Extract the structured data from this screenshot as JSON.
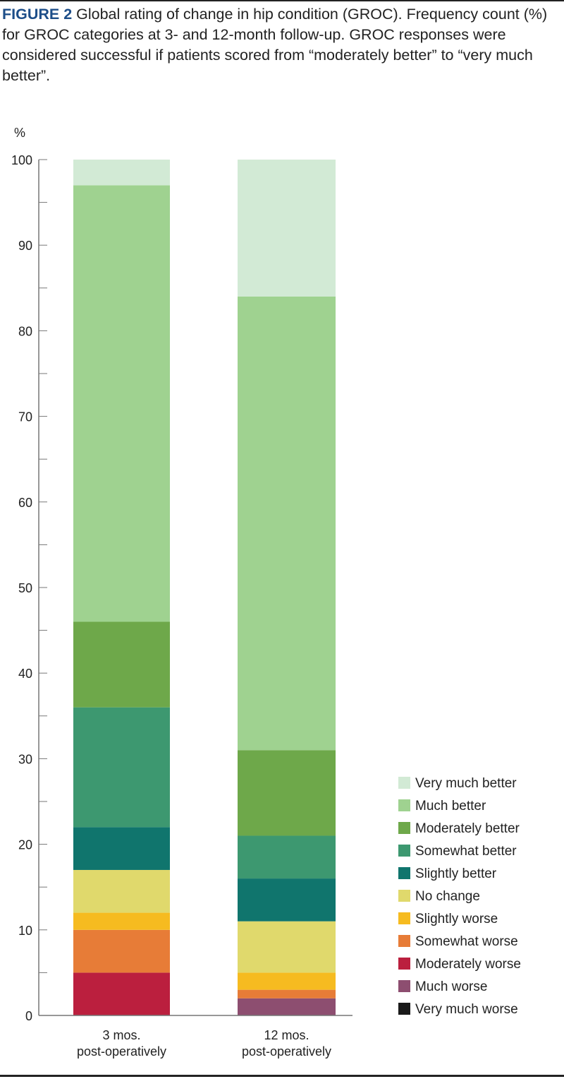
{
  "caption": {
    "figure_label": "FIGURE 2",
    "text": "Global rating of change in hip condition (GROC). Frequency count (%) for GROC categories at 3- and 12-month follow-up. GROC responses were considered successful if patients scored from “moderately better” to “very much better”."
  },
  "chart_data": {
    "type": "bar",
    "stacked": true,
    "ylabel": "%",
    "ylim": [
      0,
      100
    ],
    "yticks": [
      0,
      10,
      20,
      30,
      40,
      50,
      60,
      70,
      80,
      90,
      100
    ],
    "categories": [
      [
        "3 mos.",
        "post-operatively"
      ],
      [
        "12 mos.",
        "post-operatively"
      ]
    ],
    "legend_position": "bottom-right",
    "series": [
      {
        "name": "Very much worse",
        "color": "#1a1a1a",
        "values": [
          0,
          0
        ]
      },
      {
        "name": "Much worse",
        "color": "#8d4e70",
        "values": [
          0,
          2
        ]
      },
      {
        "name": "Moderately worse",
        "color": "#bb1f3e",
        "values": [
          5,
          0
        ]
      },
      {
        "name": "Somewhat worse",
        "color": "#e77c37",
        "values": [
          5,
          1
        ]
      },
      {
        "name": "Slightly worse",
        "color": "#f6bb20",
        "values": [
          2,
          2
        ]
      },
      {
        "name": "No change",
        "color": "#e0d96c",
        "values": [
          5,
          6
        ]
      },
      {
        "name": "Slightly better",
        "color": "#10756d",
        "values": [
          5,
          5
        ]
      },
      {
        "name": "Somewhat better",
        "color": "#3d9870",
        "values": [
          14,
          5
        ]
      },
      {
        "name": "Moderately better",
        "color": "#6ea84a",
        "values": [
          10,
          10
        ]
      },
      {
        "name": "Much better",
        "color": "#9fd290",
        "values": [
          51,
          53
        ]
      },
      {
        "name": "Very much better",
        "color": "#d2ead5",
        "values": [
          3,
          16
        ]
      }
    ]
  }
}
